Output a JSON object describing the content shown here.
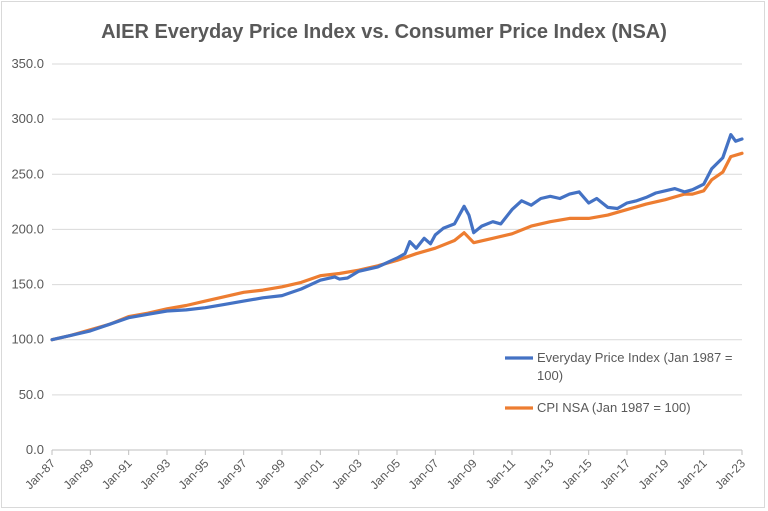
{
  "chart_data": {
    "type": "line",
    "title": "AIER Everyday Price Index vs. Consumer Price Index (NSA)",
    "xlabel": "",
    "ylabel": "",
    "ylim": [
      0,
      350
    ],
    "y_ticks": [
      "0.0",
      "50.0",
      "100.0",
      "150.0",
      "200.0",
      "250.0",
      "300.0",
      "350.0"
    ],
    "y_tick_values": [
      0,
      50,
      100,
      150,
      200,
      250,
      300,
      350
    ],
    "x_range": [
      "1987-01",
      "2023-01"
    ],
    "x_ticks": [
      "Jan-87",
      "Jan-89",
      "Jan-91",
      "Jan-93",
      "Jan-95",
      "Jan-97",
      "Jan-99",
      "Jan-01",
      "Jan-03",
      "Jan-05",
      "Jan-07",
      "Jan-09",
      "Jan-11",
      "Jan-13",
      "Jan-15",
      "Jan-17",
      "Jan-19",
      "Jan-21",
      "Jan-23"
    ],
    "x_tick_values": [
      "1987-01",
      "1989-01",
      "1991-01",
      "1993-01",
      "1995-01",
      "1997-01",
      "1999-01",
      "2001-01",
      "2003-01",
      "2005-01",
      "2007-01",
      "2009-01",
      "2011-01",
      "2013-01",
      "2015-01",
      "2017-01",
      "2019-01",
      "2021-01",
      "2023-01"
    ],
    "grid": "horizontal",
    "legend_position": "right-lower",
    "series": [
      {
        "name": "Everyday Price Index (Jan 1987 = 100)",
        "color": "#4472c4",
        "points": [
          [
            "1987-01",
            100
          ],
          [
            "1988-01",
            104
          ],
          [
            "1989-01",
            108
          ],
          [
            "1990-01",
            114
          ],
          [
            "1991-01",
            120
          ],
          [
            "1992-01",
            123
          ],
          [
            "1993-01",
            126
          ],
          [
            "1994-01",
            127
          ],
          [
            "1995-01",
            129
          ],
          [
            "1996-01",
            132
          ],
          [
            "1997-01",
            135
          ],
          [
            "1998-01",
            138
          ],
          [
            "1999-01",
            140
          ],
          [
            "2000-01",
            146
          ],
          [
            "2001-01",
            154
          ],
          [
            "2001-10",
            157
          ],
          [
            "2002-01",
            155
          ],
          [
            "2002-06",
            156
          ],
          [
            "2003-01",
            162
          ],
          [
            "2004-01",
            166
          ],
          [
            "2005-01",
            174
          ],
          [
            "2005-06",
            178
          ],
          [
            "2005-09",
            189
          ],
          [
            "2006-01",
            183
          ],
          [
            "2006-06",
            192
          ],
          [
            "2006-10",
            187
          ],
          [
            "2007-01",
            195
          ],
          [
            "2007-06",
            201
          ],
          [
            "2008-01",
            205
          ],
          [
            "2008-07",
            221
          ],
          [
            "2008-10",
            213
          ],
          [
            "2009-01",
            197
          ],
          [
            "2009-06",
            203
          ],
          [
            "2010-01",
            207
          ],
          [
            "2010-06",
            205
          ],
          [
            "2011-01",
            218
          ],
          [
            "2011-07",
            226
          ],
          [
            "2012-01",
            222
          ],
          [
            "2012-07",
            228
          ],
          [
            "2013-01",
            230
          ],
          [
            "2013-07",
            228
          ],
          [
            "2014-01",
            232
          ],
          [
            "2014-07",
            234
          ],
          [
            "2015-01",
            224
          ],
          [
            "2015-06",
            228
          ],
          [
            "2016-01",
            220
          ],
          [
            "2016-07",
            219
          ],
          [
            "2017-01",
            224
          ],
          [
            "2017-07",
            226
          ],
          [
            "2018-01",
            229
          ],
          [
            "2018-07",
            233
          ],
          [
            "2019-01",
            235
          ],
          [
            "2019-07",
            237
          ],
          [
            "2020-01",
            234
          ],
          [
            "2020-06",
            236
          ],
          [
            "2021-01",
            241
          ],
          [
            "2021-06",
            255
          ],
          [
            "2022-01",
            265
          ],
          [
            "2022-06",
            286
          ],
          [
            "2022-09",
            280
          ],
          [
            "2023-01",
            282
          ]
        ]
      },
      {
        "name": "CPI NSA (Jan 1987 = 100)",
        "color": "#ed7d31",
        "points": [
          [
            "1987-01",
            100
          ],
          [
            "1988-01",
            104
          ],
          [
            "1989-01",
            109
          ],
          [
            "1990-01",
            114
          ],
          [
            "1991-01",
            121
          ],
          [
            "1992-01",
            124
          ],
          [
            "1993-01",
            128
          ],
          [
            "1994-01",
            131
          ],
          [
            "1995-01",
            135
          ],
          [
            "1996-01",
            139
          ],
          [
            "1997-01",
            143
          ],
          [
            "1998-01",
            145
          ],
          [
            "1999-01",
            148
          ],
          [
            "2000-01",
            152
          ],
          [
            "2001-01",
            158
          ],
          [
            "2002-01",
            160
          ],
          [
            "2003-01",
            163
          ],
          [
            "2004-01",
            167
          ],
          [
            "2005-01",
            172
          ],
          [
            "2006-01",
            178
          ],
          [
            "2007-01",
            183
          ],
          [
            "2008-01",
            190
          ],
          [
            "2008-07",
            197
          ],
          [
            "2009-01",
            188
          ],
          [
            "2010-01",
            192
          ],
          [
            "2011-01",
            196
          ],
          [
            "2012-01",
            203
          ],
          [
            "2013-01",
            207
          ],
          [
            "2014-01",
            210
          ],
          [
            "2015-01",
            210
          ],
          [
            "2016-01",
            213
          ],
          [
            "2017-01",
            218
          ],
          [
            "2018-01",
            223
          ],
          [
            "2019-01",
            227
          ],
          [
            "2020-01",
            232
          ],
          [
            "2020-06",
            232
          ],
          [
            "2021-01",
            235
          ],
          [
            "2021-06",
            245
          ],
          [
            "2022-01",
            252
          ],
          [
            "2022-06",
            266
          ],
          [
            "2023-01",
            269
          ]
        ]
      }
    ]
  }
}
